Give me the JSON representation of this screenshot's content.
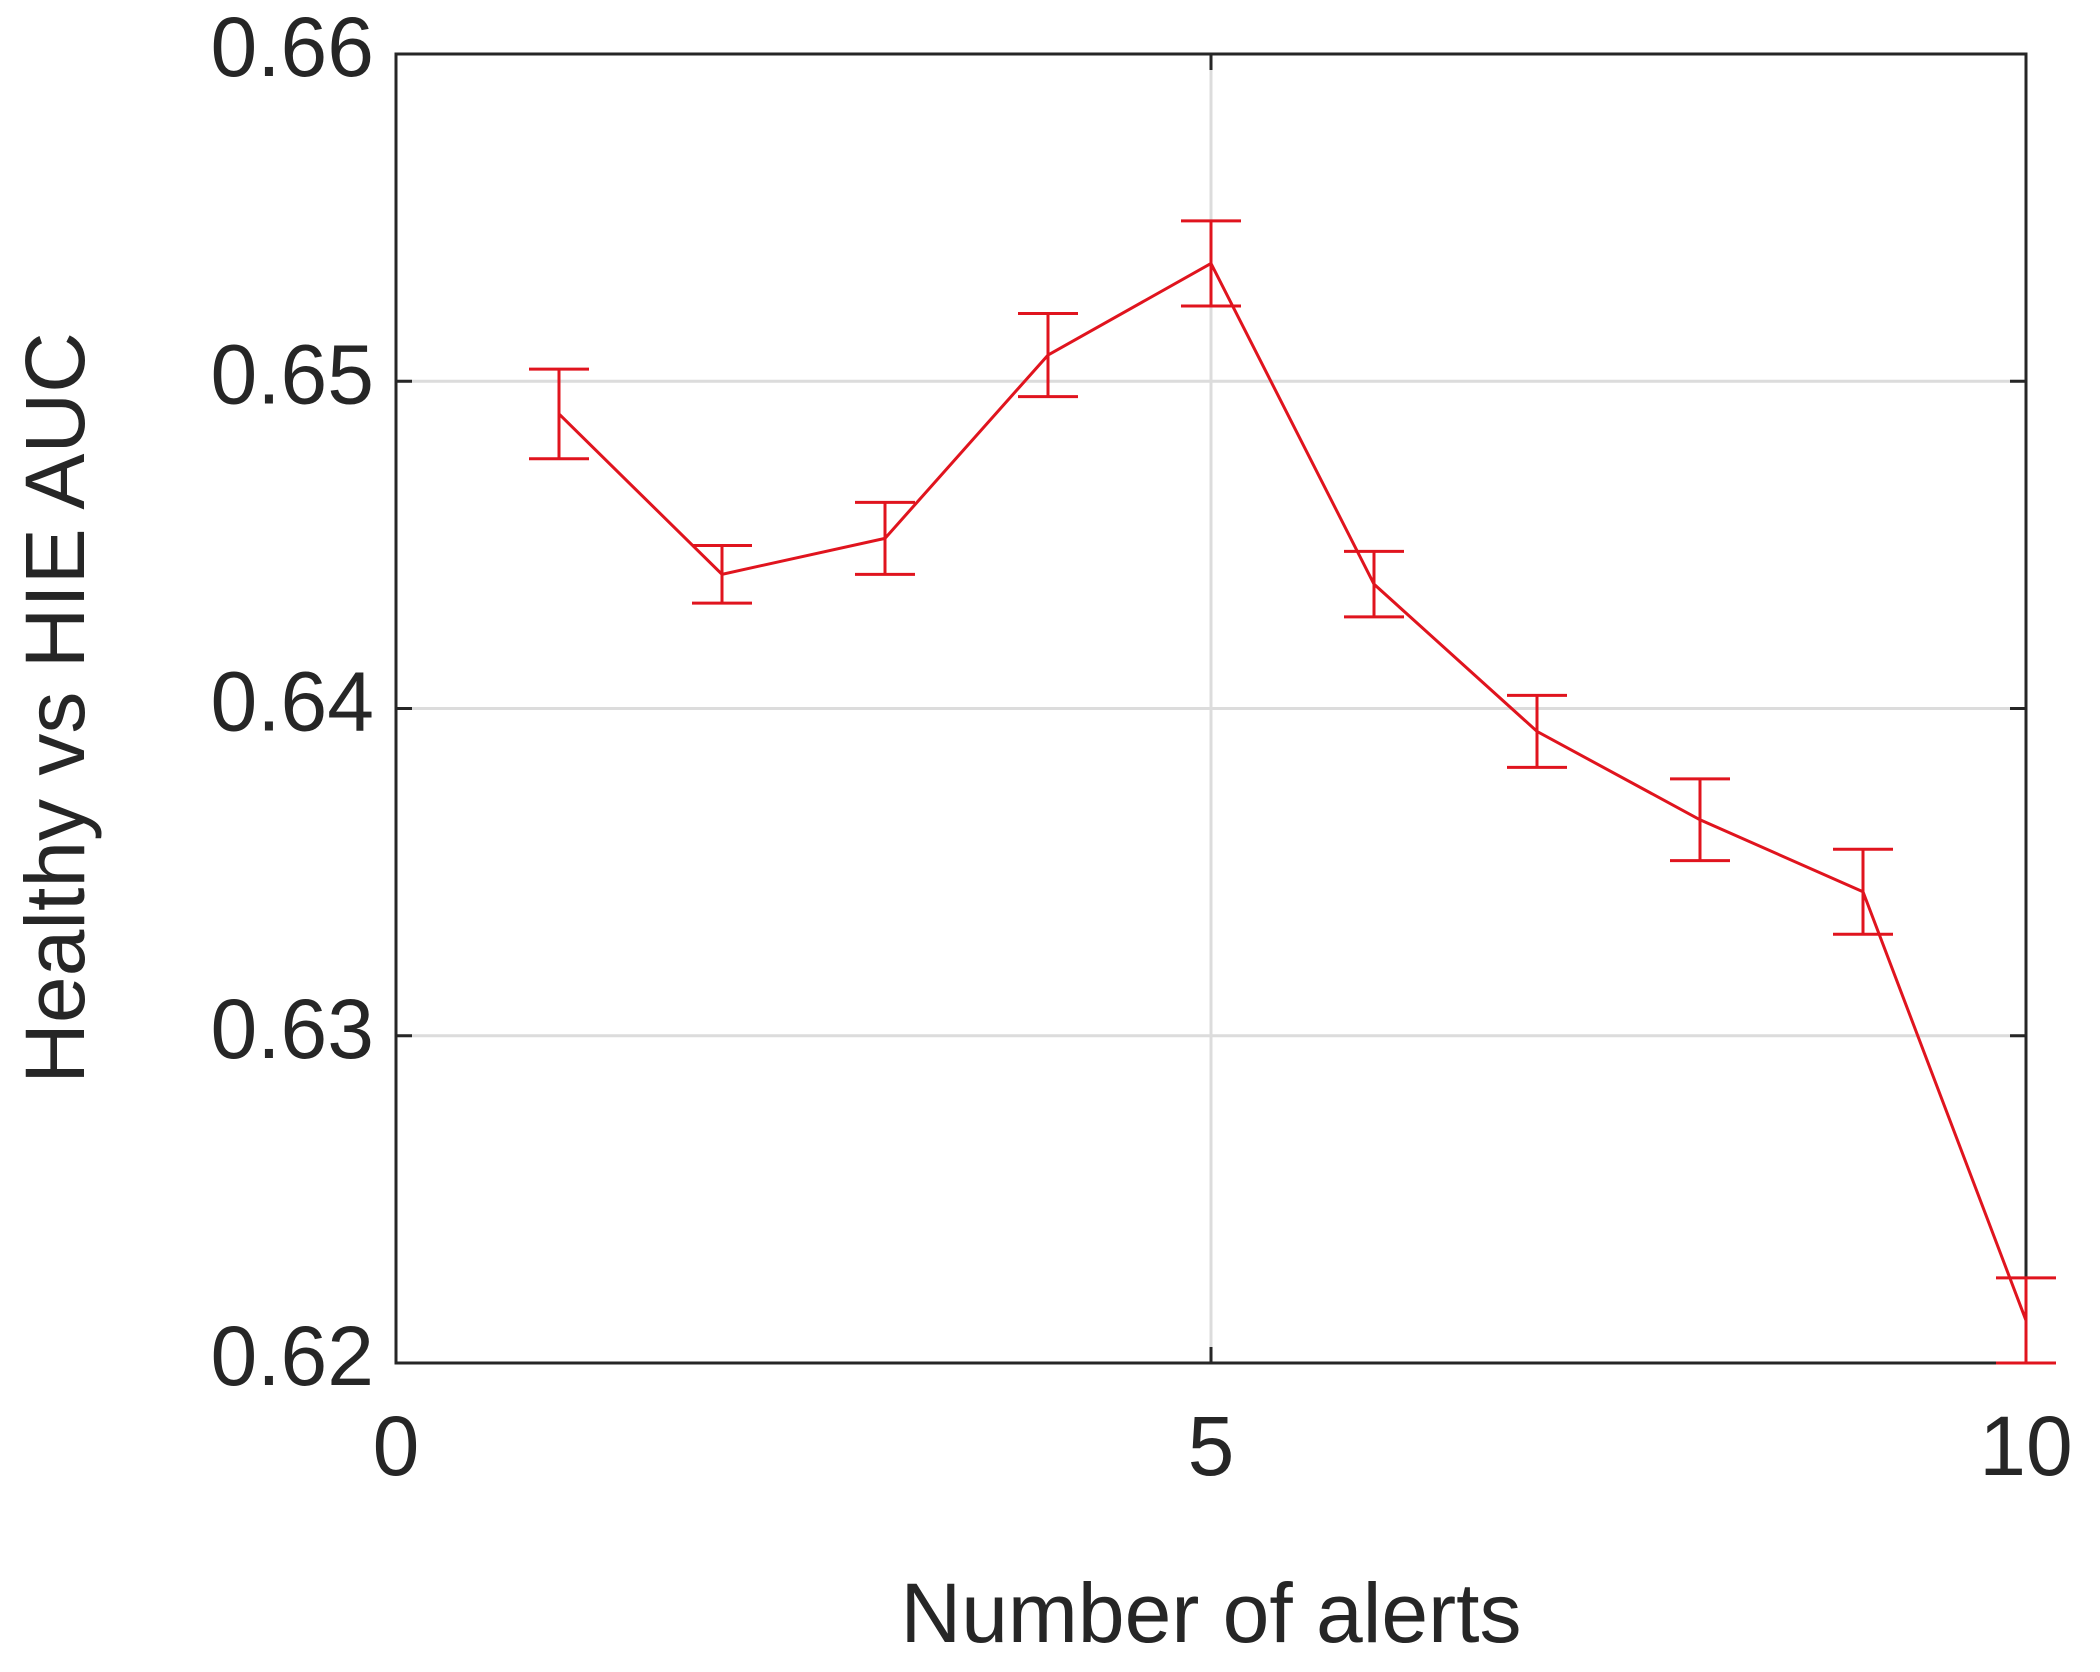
{
  "chart_data": {
    "type": "line",
    "xlabel": "Number of alerts",
    "ylabel": "Healthy vs HIE AUC",
    "x": [
      1,
      2,
      3,
      4,
      5,
      6,
      7,
      8,
      9,
      10
    ],
    "series": [
      {
        "color": "#e0141e",
        "values": [
          0.649,
          0.6441,
          0.6452,
          0.6508,
          0.6536,
          0.6438,
          0.6393,
          0.6366,
          0.6344,
          0.6213
        ],
        "errors": [
          0.00137,
          0.00088,
          0.0011,
          0.00127,
          0.0013,
          0.001,
          0.0011,
          0.00125,
          0.0013,
          0.0013
        ]
      }
    ],
    "xlim": [
      0,
      10
    ],
    "xticks": [
      0,
      5,
      10
    ],
    "ylim": [
      0.62,
      0.66
    ],
    "yticks": [
      0.62,
      0.63,
      0.64,
      0.65,
      0.66
    ],
    "grid": true
  }
}
